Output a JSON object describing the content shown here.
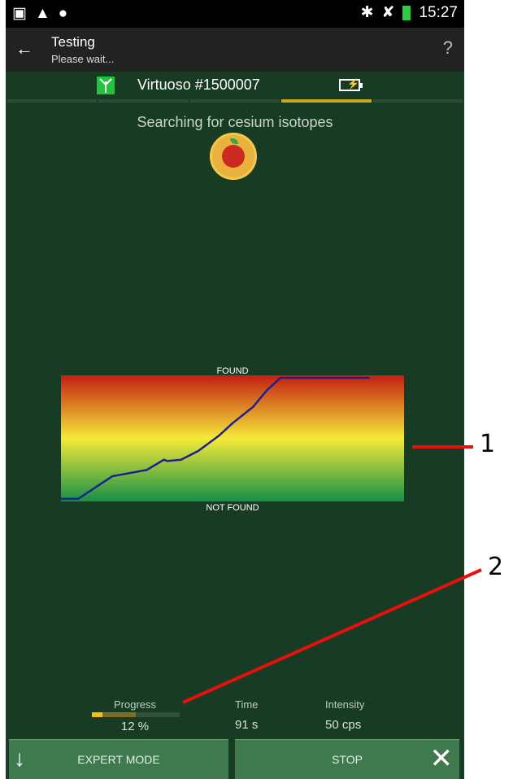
{
  "statusbar": {
    "left_icons": [
      "image-icon",
      "warning-icon",
      "apple-icon"
    ],
    "right_icons": [
      "bluetooth-icon",
      "silent-icon",
      "battery-icon"
    ],
    "time": "15:27"
  },
  "actionbar": {
    "title": "Testing",
    "subtitle": "Please wait...",
    "help": "?"
  },
  "device": {
    "name": "Virtuoso #1500007",
    "segments_active_index": 4
  },
  "main": {
    "status_text": "Searching for cesium isotopes"
  },
  "chart": {
    "top_label": "FOUND",
    "bottom_label": "NOT FOUND"
  },
  "chart_data": {
    "type": "line",
    "title": "",
    "xlabel": "",
    "ylabel": "",
    "x": [
      0,
      5,
      15,
      25,
      30,
      31,
      35,
      40,
      46,
      50,
      56,
      60,
      64,
      70,
      90
    ],
    "series": [
      {
        "values": [
          0.02,
          0.02,
          0.2,
          0.25,
          0.33,
          0.32,
          0.33,
          0.4,
          0.52,
          0.62,
          0.75,
          0.88,
          0.98,
          0.98,
          0.98
        ]
      }
    ],
    "ylim": [
      0,
      1
    ],
    "xlim": [
      0,
      100
    ],
    "line_color": "#1f1f8f",
    "gradient_colors": [
      "#c21f12",
      "#f4ea38",
      "#169047"
    ]
  },
  "stats": {
    "progress_label": "Progress",
    "progress_value": "12 %",
    "progress_fraction": 0.5,
    "progress_buffer": 0.12,
    "time_label": "Time",
    "time_value": "91 s",
    "intensity_label": "Intensity",
    "intensity_value": "50 cps"
  },
  "buttons": {
    "expert_mode": "EXPERT MODE",
    "stop": "STOP"
  },
  "annotations": {
    "label_1": "1",
    "label_2": "2",
    "color": "#e8100c"
  }
}
